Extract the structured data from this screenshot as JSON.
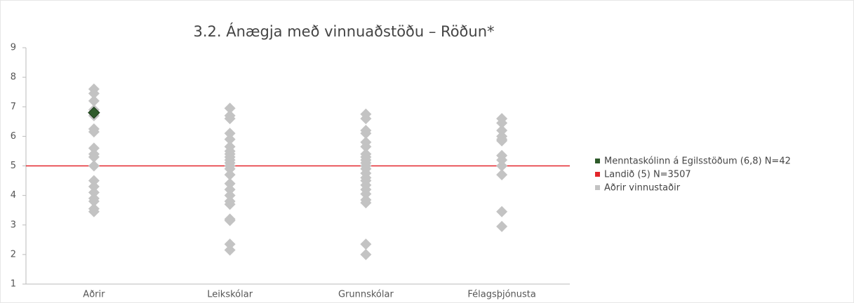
{
  "chart_data": {
    "type": "strip",
    "title": "3.2. Ánægja með vinnuaðstöðu – Röðun*",
    "categories": [
      "Aðrir",
      "Leikskólar",
      "Grunnskólar",
      "Félagsþjónusta"
    ],
    "ylim": [
      1,
      9
    ],
    "yticks": [
      1,
      2,
      3,
      4,
      5,
      6,
      7,
      8,
      9
    ],
    "series": [
      {
        "name": "Aðrir vinnustaðir",
        "color": "#c3c3c3",
        "values": [
          [
            7.6,
            7.45,
            7.2,
            6.9,
            6.7,
            6.25,
            6.15,
            5.6,
            5.4,
            5.3,
            5.0,
            4.5,
            4.3,
            4.1,
            3.9,
            3.8,
            3.55,
            3.45
          ],
          [
            6.95,
            6.7,
            6.6,
            6.1,
            5.9,
            5.65,
            5.5,
            5.4,
            5.3,
            5.2,
            5.1,
            5.0,
            4.9,
            4.7,
            4.4,
            4.2,
            4.0,
            3.8,
            3.7,
            3.2,
            3.15,
            2.35,
            2.15
          ],
          [
            6.75,
            6.6,
            6.2,
            6.1,
            5.8,
            5.65,
            5.4,
            5.3,
            5.2,
            5.1,
            5.0,
            4.9,
            4.75,
            4.6,
            4.5,
            4.35,
            4.2,
            4.05,
            3.85,
            3.75,
            2.35,
            2.0
          ],
          [
            6.6,
            6.45,
            6.2,
            6.0,
            5.9,
            5.85,
            5.35,
            5.2,
            5.0,
            4.7,
            3.45,
            2.95
          ]
        ]
      },
      {
        "name": "Menntaskólinn á Egilsstöðum (6,8) N=42",
        "color": "#2e5a2a",
        "values": [
          [
            6.8
          ],
          [],
          [],
          []
        ]
      }
    ],
    "reference_line": {
      "name": "Landið (5) N=3507",
      "value": 5,
      "color": "#e3262b"
    }
  }
}
